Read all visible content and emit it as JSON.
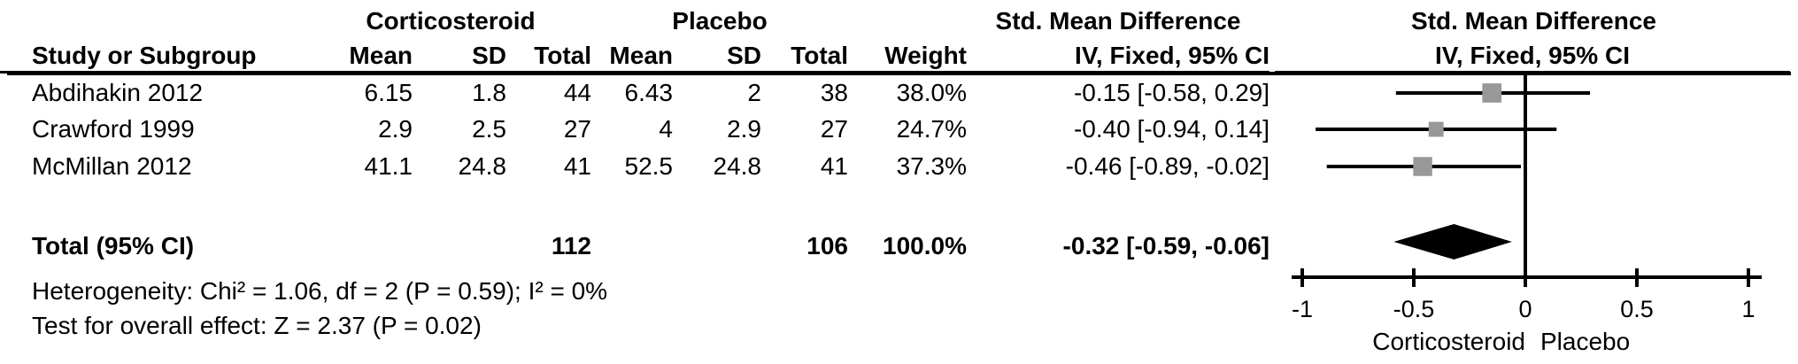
{
  "header": {
    "group_experimental": "Corticosteroid",
    "group_control": "Placebo",
    "effect_col_title": "Std. Mean Difference",
    "plot_col_title": "Std. Mean Difference",
    "cols": {
      "study": "Study or Subgroup",
      "mean_c": "Mean",
      "sd_c": "SD",
      "total_c": "Total",
      "mean_p": "Mean",
      "sd_p": "SD",
      "total_p": "Total",
      "weight": "Weight",
      "ci": "IV, Fixed, 95% CI",
      "ci_plot": "IV, Fixed, 95% CI"
    }
  },
  "rows": [
    {
      "study": "Abdihakin 2012",
      "mean_c": "6.15",
      "sd_c": "1.8",
      "total_c": "44",
      "mean_p": "6.43",
      "sd_p": "2",
      "total_p": "38",
      "weight": "38.0%",
      "ci": "-0.15 [-0.58, 0.29]"
    },
    {
      "study": "Crawford 1999",
      "mean_c": "2.9",
      "sd_c": "2.5",
      "total_c": "27",
      "mean_p": "4",
      "sd_p": "2.9",
      "total_p": "27",
      "weight": "24.7%",
      "ci": "-0.40 [-0.94, 0.14]"
    },
    {
      "study": "McMillan 2012",
      "mean_c": "41.1",
      "sd_c": "24.8",
      "total_c": "41",
      "mean_p": "52.5",
      "sd_p": "24.8",
      "total_p": "41",
      "weight": "37.3%",
      "ci": "-0.46 [-0.89, -0.02]"
    }
  ],
  "total": {
    "label": "Total (95% CI)",
    "total_c": "112",
    "total_p": "106",
    "weight": "100.0%",
    "ci": "-0.32 [-0.59, -0.06]"
  },
  "footnotes": {
    "heterogeneity": "Heterogeneity: Chi² = 1.06, df = 2 (P = 0.59); I² = 0%",
    "overall_effect": "Test for overall effect: Z = 2.37 (P = 0.02)"
  },
  "chart_data": {
    "type": "forest",
    "title": "Std. Mean Difference",
    "subtitle": "IV, Fixed, 95% CI",
    "xlim": [
      -1,
      1
    ],
    "ticks": [
      -1,
      -0.5,
      0,
      0.5,
      1
    ],
    "tick_labels": [
      "-1",
      "-0.5",
      "0",
      "0.5",
      "1"
    ],
    "x_axis_left_label": "Corticosteroid",
    "x_axis_right_label": "Placebo",
    "studies": [
      {
        "name": "Abdihakin 2012",
        "effect": -0.15,
        "ci_low": -0.58,
        "ci_high": 0.29,
        "weight_pct": 38.0
      },
      {
        "name": "Crawford 1999",
        "effect": -0.4,
        "ci_low": -0.94,
        "ci_high": 0.14,
        "weight_pct": 24.7
      },
      {
        "name": "McMillan 2012",
        "effect": -0.46,
        "ci_low": -0.89,
        "ci_high": -0.02,
        "weight_pct": 37.3
      }
    ],
    "total": {
      "effect": -0.32,
      "ci_low": -0.59,
      "ci_high": -0.06
    },
    "marker_color": "#989898",
    "line_color": "#000000",
    "grid": false
  }
}
